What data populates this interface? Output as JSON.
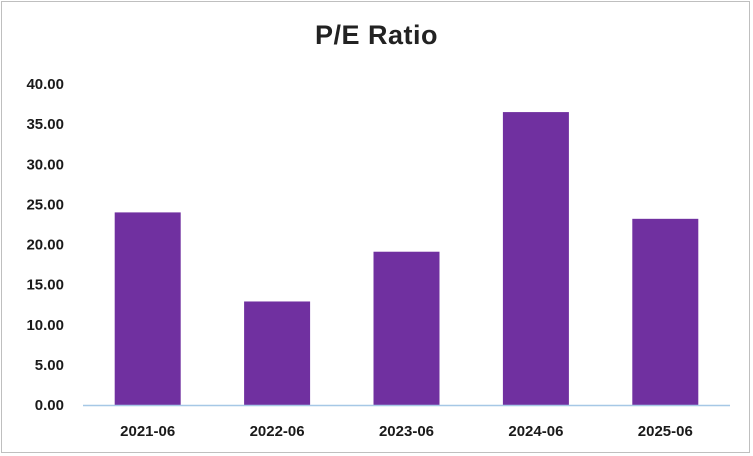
{
  "chart_data": {
    "type": "bar",
    "title": "P/E Ratio",
    "xlabel": "",
    "ylabel": "",
    "categories": [
      "2021-06",
      "2022-06",
      "2023-06",
      "2024-06",
      "2025-06"
    ],
    "values": [
      24.0,
      12.9,
      19.1,
      36.5,
      23.2
    ],
    "ylim": [
      0,
      40
    ],
    "yticks": [
      "0.00",
      "5.00",
      "10.00",
      "15.00",
      "20.00",
      "25.00",
      "30.00",
      "35.00",
      "40.00"
    ],
    "grid": false,
    "legend": "none",
    "colors": {
      "bar": "#7030a0",
      "axis": "#a6c8e6"
    }
  }
}
